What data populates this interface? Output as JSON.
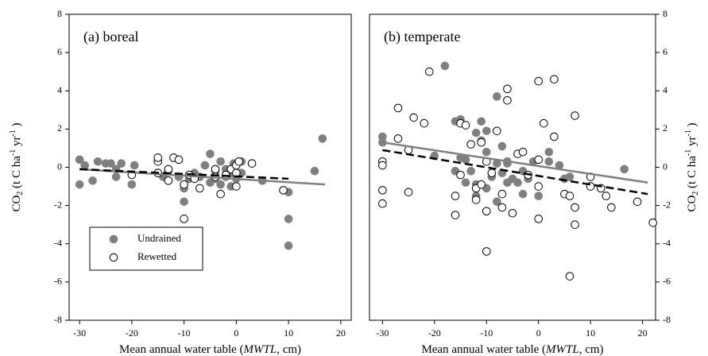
{
  "chart_data": [
    {
      "type": "scatter",
      "panel_label": "(a) boreal",
      "xlabel": [
        "Mean annual water table (",
        "MWTL",
        ", cm)"
      ],
      "ylabel": [
        "CO",
        "2",
        " (t C ha",
        "-1",
        " yr",
        "-1",
        " )"
      ],
      "y_axis_side": "left",
      "legend": "lower left",
      "xlim": [
        -32,
        22
      ],
      "ylim": [
        -8,
        8
      ],
      "xticks": [
        -30,
        -20,
        -10,
        0,
        10,
        20
      ],
      "yticks": [
        -8,
        -6,
        -4,
        -2,
        0,
        2,
        4,
        6,
        8
      ],
      "series": [
        {
          "name": "Undrained",
          "color": "#808080",
          "filled": true,
          "x": [
            -30,
            -30,
            -29,
            -27.5,
            -26.5,
            -25,
            -24,
            -23,
            -23,
            -22,
            -19.5,
            -20,
            -15,
            -14,
            -13,
            -11,
            -10,
            -10,
            -9,
            -7,
            -6,
            -5,
            -5,
            -4,
            -4,
            -3,
            -2,
            -2,
            -1,
            -0.5,
            0,
            1,
            1,
            -1,
            5,
            10,
            10,
            10,
            15,
            16.5,
            -8,
            -3
          ],
          "values": [
            0.4,
            -0.9,
            0.1,
            -0.7,
            0.3,
            0.2,
            0.2,
            -0.1,
            -0.5,
            0.2,
            0.1,
            -0.9,
            -0.3,
            -0.5,
            -0.2,
            -0.5,
            -1.1,
            -1.8,
            -0.6,
            -0.5,
            0.1,
            -0.8,
            0.7,
            -0.6,
            -0.2,
            -0.9,
            -0.1,
            -0.5,
            -0.3,
            0.2,
            -0.6,
            -0.3,
            0.3,
            -1.0,
            -0.7,
            -1.3,
            -2.7,
            -4.1,
            -0.2,
            1.5,
            -0.3,
            0.3
          ]
        },
        {
          "name": "Rewetted",
          "color": "#000000",
          "filled": false,
          "x": [
            -15,
            -15,
            -15,
            -13,
            -13,
            -12,
            -11,
            -10,
            -10,
            -9,
            -8,
            -7,
            -4,
            -4,
            -3,
            -2,
            -1,
            0,
            0,
            0,
            0.5,
            3,
            9,
            -20
          ],
          "values": [
            0.3,
            0.5,
            -0.3,
            -0.7,
            -0.1,
            0.5,
            0.4,
            -0.9,
            -2.7,
            -0.4,
            -0.6,
            -1.1,
            -0.1,
            -0.5,
            -1.4,
            -0.4,
            -0.1,
            0.1,
            -0.3,
            -1.0,
            0.3,
            0.2,
            -1.2,
            -0.4
          ]
        }
      ],
      "fit_lines": [
        {
          "color": "#808080",
          "dashed": false,
          "x": [
            -30,
            17
          ],
          "values": [
            -0.1,
            -0.9
          ]
        },
        {
          "color": "#000000",
          "dashed": true,
          "x": [
            -30,
            10
          ],
          "values": [
            -0.1,
            -0.6
          ]
        }
      ]
    },
    {
      "type": "scatter",
      "panel_label": "(b) temperate",
      "xlabel": [
        "Mean annual water table (",
        "MWTL",
        ", cm)"
      ],
      "ylabel": [
        "CO",
        "2",
        " (t C ha",
        "-1",
        " yr",
        "-1",
        " )"
      ],
      "y_axis_side": "right",
      "xlim": [
        -32.5,
        22.5
      ],
      "ylim": [
        -8,
        8
      ],
      "xticks": [
        -30,
        -20,
        -10,
        0,
        10,
        20
      ],
      "yticks": [
        -8,
        -6,
        -4,
        -2,
        0,
        2,
        4,
        6,
        8
      ],
      "series": [
        {
          "color": "#808080",
          "filled": true,
          "x": [
            -30,
            -30,
            -18,
            -20,
            -16,
            -15,
            -15,
            -14,
            -14,
            -13,
            -12,
            -12,
            -11,
            -11,
            -10,
            -10,
            -10,
            -9,
            -8,
            -8,
            -8,
            -7,
            -7,
            -6,
            -6,
            -6,
            -5,
            -4,
            -3,
            -3,
            -2,
            -1,
            0,
            2,
            2,
            4,
            5,
            6,
            16.5,
            -12,
            -16
          ],
          "values": [
            1.6,
            1.3,
            5.3,
            0.6,
            2.4,
            2.5,
            0.5,
            -0.8,
            0.4,
            -0.2,
            -0.9,
            1.8,
            2.4,
            1.4,
            1.9,
            -1.1,
            0.8,
            -0.5,
            0.2,
            3.7,
            -1.8,
            -0.3,
            1.1,
            0.3,
            -0.8,
            0.2,
            -0.6,
            -0.8,
            -1.4,
            -0.2,
            -0.6,
            0.3,
            -1.5,
            0.8,
            0.3,
            0.1,
            -0.6,
            -0.5,
            -0.1,
            -1.5,
            -0.2
          ]
        },
        {
          "color": "#000000",
          "filled": false,
          "x": [
            -30,
            -30,
            -30,
            -30,
            -27,
            -27,
            -25,
            -25,
            -24,
            -22,
            -21,
            -16,
            -16,
            -15,
            -15,
            -14,
            -13,
            -12,
            -12,
            -11,
            -11,
            -10,
            -10,
            -10,
            -9,
            -8,
            -7,
            -7,
            -6,
            -6,
            -5,
            -4,
            -3,
            -2,
            0,
            0,
            0,
            0,
            1,
            3,
            3,
            5,
            6,
            6,
            7,
            7,
            7,
            10,
            10,
            12,
            13,
            14,
            19,
            22
          ],
          "values": [
            0.3,
            0.1,
            -1.2,
            -1.9,
            3.1,
            1.5,
            -1.3,
            0.9,
            2.6,
            2.3,
            5.0,
            -2.5,
            -1.5,
            -0.4,
            2.3,
            2.2,
            1.2,
            -1.1,
            -1.7,
            -0.9,
            1.3,
            0.3,
            -2.3,
            -4.4,
            -0.3,
            1.9,
            -1.4,
            -2.1,
            4.1,
            3.5,
            -2.4,
            0.7,
            0.8,
            -0.4,
            0.4,
            -1.0,
            -2.7,
            4.5,
            2.3,
            4.6,
            1.6,
            -1.4,
            -5.7,
            -1.5,
            2.7,
            -2.1,
            -3.0,
            -0.5,
            -1.0,
            -1.1,
            -1.5,
            -2.1,
            -1.8,
            -2.9
          ]
        }
      ],
      "fit_lines": [
        {
          "color": "#808080",
          "dashed": false,
          "x": [
            -30,
            21
          ],
          "values": [
            1.3,
            -0.8
          ]
        },
        {
          "color": "#000000",
          "dashed": true,
          "x": [
            -30,
            21
          ],
          "values": [
            0.9,
            -1.4
          ]
        }
      ]
    }
  ]
}
